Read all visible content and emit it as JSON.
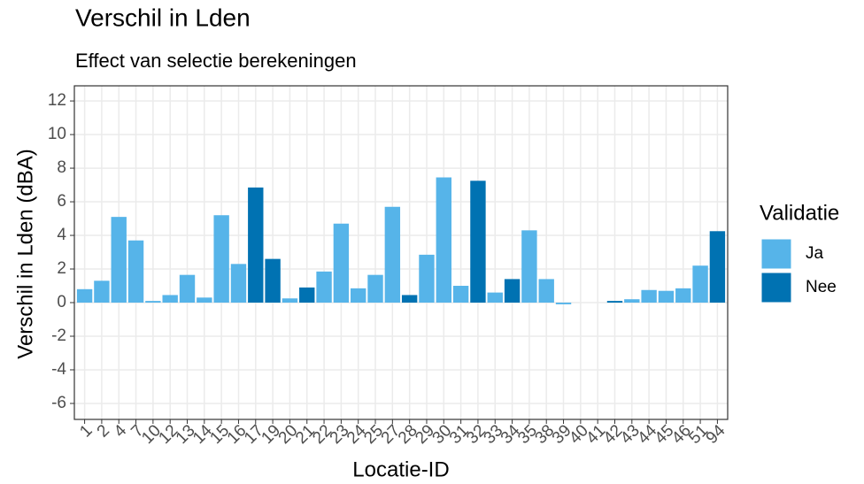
{
  "chart_data": {
    "type": "bar",
    "title": "Verschil in Lden",
    "subtitle": "Effect van selectie berekeningen",
    "x_label": "Locatie-ID",
    "y_label": "Verschil in Lden (dBA)",
    "legend_title": "Validatie",
    "categories": [
      "1",
      "2",
      "4",
      "7",
      "10",
      "12",
      "13",
      "14",
      "15",
      "16",
      "17",
      "19",
      "20",
      "21",
      "22",
      "23",
      "24",
      "25",
      "27",
      "28",
      "29",
      "30",
      "31",
      "32",
      "33",
      "34",
      "35",
      "38",
      "39",
      "40",
      "41",
      "42",
      "43",
      "44",
      "45",
      "46",
      "51",
      "94"
    ],
    "series": [
      {
        "name": "Ja",
        "color": "#56B4E9",
        "values": [
          0.8,
          1.3,
          5.1,
          3.7,
          0.1,
          0.45,
          1.65,
          0.3,
          5.2,
          2.3,
          null,
          null,
          0.25,
          null,
          1.85,
          4.7,
          0.85,
          1.65,
          5.7,
          null,
          2.85,
          7.45,
          1.0,
          null,
          0.6,
          null,
          4.3,
          1.4,
          -0.1,
          null,
          null,
          null,
          0.2,
          0.75,
          0.7,
          0.85,
          2.2,
          null
        ]
      },
      {
        "name": "Nee",
        "color": "#0072B2",
        "values": [
          null,
          null,
          null,
          null,
          null,
          null,
          null,
          null,
          null,
          null,
          6.85,
          2.6,
          null,
          0.9,
          null,
          null,
          null,
          null,
          null,
          0.45,
          null,
          null,
          null,
          7.25,
          null,
          1.4,
          null,
          null,
          null,
          null,
          null,
          0.1,
          null,
          null,
          null,
          null,
          null,
          4.25
        ]
      }
    ],
    "ylim": [
      -6.95,
      12.9
    ],
    "yticks": [
      -6,
      -4,
      -2,
      0,
      2,
      4,
      6,
      8,
      10,
      12
    ],
    "grid": true,
    "legend": "right"
  }
}
